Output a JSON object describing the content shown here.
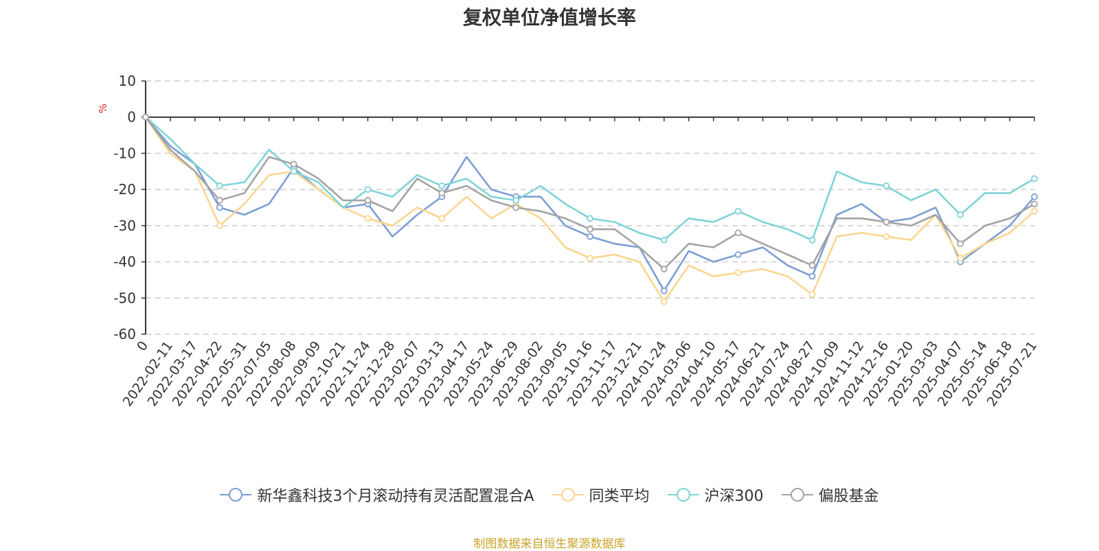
{
  "chart_data": {
    "type": "line",
    "title": "复权单位净值增长率",
    "ylabel": "%",
    "ylim": [
      -60,
      10
    ],
    "yticks": [
      10,
      0,
      -10,
      -20,
      -30,
      -40,
      -50,
      -60
    ],
    "grid": true,
    "legend_position": "bottom",
    "x": [
      "0",
      "2022-02-11",
      "2022-03-17",
      "2022-04-22",
      "2022-05-31",
      "2022-07-05",
      "2022-08-08",
      "2022-09-09",
      "2022-10-21",
      "2022-11-24",
      "2022-12-28",
      "2023-02-07",
      "2023-03-13",
      "2023-04-17",
      "2023-05-24",
      "2023-06-29",
      "2023-08-02",
      "2023-09-05",
      "2023-10-16",
      "2023-11-17",
      "2023-12-21",
      "2024-01-24",
      "2024-03-06",
      "2024-04-10",
      "2024-05-17",
      "2024-06-21",
      "2024-07-24",
      "2024-08-27",
      "2024-10-09",
      "2024-11-12",
      "2024-12-16",
      "2025-01-20",
      "2025-03-03",
      "2025-04-07",
      "2025-05-14",
      "2025-06-18",
      "2025-07-21"
    ],
    "series": [
      {
        "name": "新华鑫科技3个月滚动持有灵活配置混合A",
        "color": "#7b9fd4",
        "values": [
          0,
          -8,
          -13,
          -25,
          -27,
          -24,
          -14,
          -20,
          -25,
          -24,
          -33,
          -27,
          -22,
          -11,
          -20,
          -22,
          -22,
          -30,
          -33,
          -35,
          -36,
          -48,
          -37,
          -40,
          -38,
          -36,
          -41,
          -44,
          -27,
          -24,
          -29,
          -28,
          -25,
          -40,
          -35,
          -30,
          -22
        ]
      },
      {
        "name": "同类平均",
        "color": "#fcd58e",
        "values": [
          0,
          -10,
          -15,
          -30,
          -24,
          -16,
          -15,
          -20,
          -25,
          -28,
          -30,
          -25,
          -28,
          -22,
          -28,
          -24,
          -28,
          -36,
          -39,
          -38,
          -40,
          -51,
          -41,
          -44,
          -43,
          -42,
          -44,
          -49,
          -33,
          -32,
          -33,
          -34,
          -27,
          -39,
          -35,
          -32,
          -26
        ]
      },
      {
        "name": "沪深300",
        "color": "#7fd3d6",
        "values": [
          0,
          -6,
          -13,
          -19,
          -18,
          -9,
          -15,
          -18,
          -25,
          -20,
          -22,
          -16,
          -19,
          -17,
          -22,
          -23,
          -19,
          -24,
          -28,
          -29,
          -32,
          -34,
          -28,
          -29,
          -26,
          -29,
          -31,
          -34,
          -15,
          -18,
          -19,
          -23,
          -20,
          -27,
          -21,
          -21,
          -17
        ]
      },
      {
        "name": "偏股基金",
        "color": "#a3a3a3",
        "values": [
          0,
          -9,
          -15,
          -23,
          -21,
          -11,
          -13,
          -17,
          -23,
          -23,
          -26,
          -17,
          -21,
          -19,
          -23,
          -25,
          -26,
          -28,
          -31,
          -31,
          -36,
          -42,
          -35,
          -36,
          -32,
          -35,
          -38,
          -41,
          -28,
          -28,
          -29,
          -30,
          -27,
          -35,
          -30,
          -28,
          -24
        ]
      }
    ]
  },
  "source": "制图数据来自恒生聚源数据库"
}
